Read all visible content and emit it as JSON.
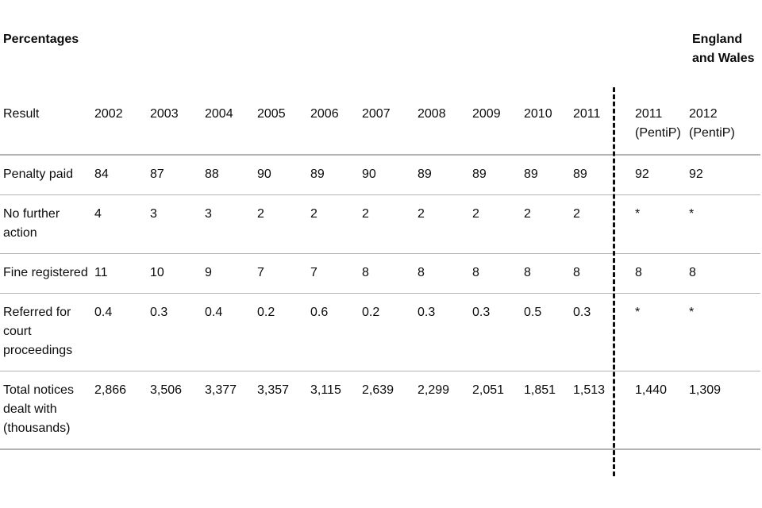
{
  "table": {
    "caption_left": "Percentages",
    "caption_right": "England and Wales",
    "header": [
      "Result",
      "2002",
      "2003",
      "2004",
      "2005",
      "2006",
      "2007",
      "2008",
      "2009",
      "2010",
      "2011",
      "2011 (PentiP)",
      "2012 (PentiP)"
    ],
    "rows": [
      [
        "Penalty paid",
        "84",
        "87",
        "88",
        "90",
        "89",
        "90",
        "89",
        "89",
        "89",
        "89",
        "92",
        "92"
      ],
      [
        "No further action",
        "4",
        "3",
        "3",
        "2",
        "2",
        "2",
        "2",
        "2",
        "2",
        "2",
        "*",
        "*"
      ],
      [
        "Fine registered",
        "11",
        "10",
        "9",
        "7",
        "7",
        "8",
        "8",
        "8",
        "8",
        "8",
        "8",
        "8"
      ],
      [
        "Referred for court proceedings",
        "0.4",
        "0.3",
        "0.4",
        "0.2",
        "0.6",
        "0.2",
        "0.3",
        "0.3",
        "0.5",
        "0.3",
        "*",
        "*"
      ],
      [
        "Total notices dealt with (thousands)",
        "2,866",
        "3,506",
        "3,377",
        "3,357",
        "3,115",
        "2,639",
        "2,299",
        "2,051",
        "1,851",
        "1,513",
        "1,440",
        "1,309"
      ]
    ]
  }
}
